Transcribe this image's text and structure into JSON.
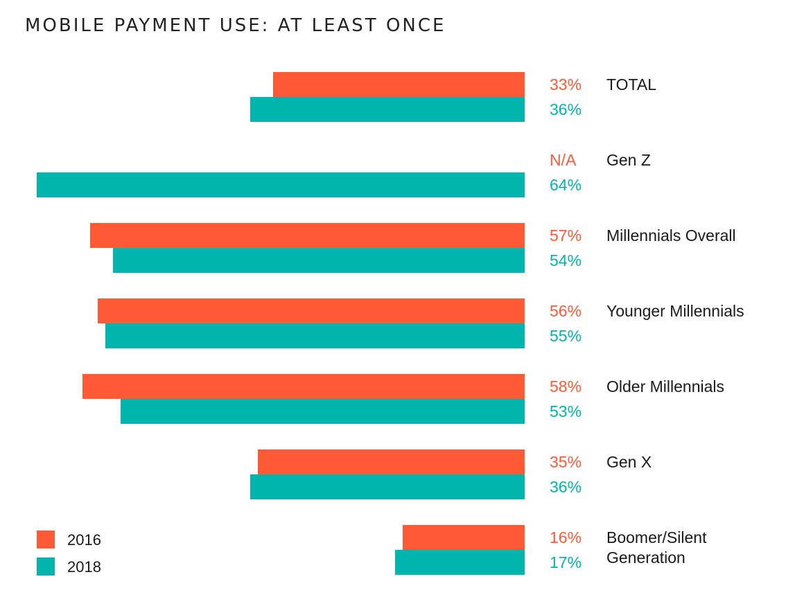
{
  "chart_data": {
    "type": "bar",
    "orientation": "horizontal",
    "title": "MOBILE PAYMENT USE: AT LEAST ONCE",
    "categories": [
      [
        "TOTAL"
      ],
      [
        "Gen Z"
      ],
      [
        "Millennials Overall"
      ],
      [
        "Younger Millennials"
      ],
      [
        "Older Millennials"
      ],
      [
        "Gen X"
      ],
      [
        "Boomer/Silent",
        "Generation"
      ]
    ],
    "series": [
      {
        "name": "2016",
        "color": "#ff5a36",
        "values": [
          33,
          null,
          57,
          56,
          58,
          35,
          16
        ],
        "labels": [
          "33%",
          "N/A",
          "57%",
          "56%",
          "58%",
          "35%",
          "16%"
        ]
      },
      {
        "name": "2018",
        "color": "#00b5ad",
        "values": [
          36,
          64,
          54,
          55,
          53,
          36,
          17
        ],
        "labels": [
          "36%",
          "64%",
          "54%",
          "55%",
          "53%",
          "36%",
          "17%"
        ]
      }
    ],
    "xlim": [
      0,
      64
    ],
    "grid": false,
    "legend": "bottom-left"
  }
}
